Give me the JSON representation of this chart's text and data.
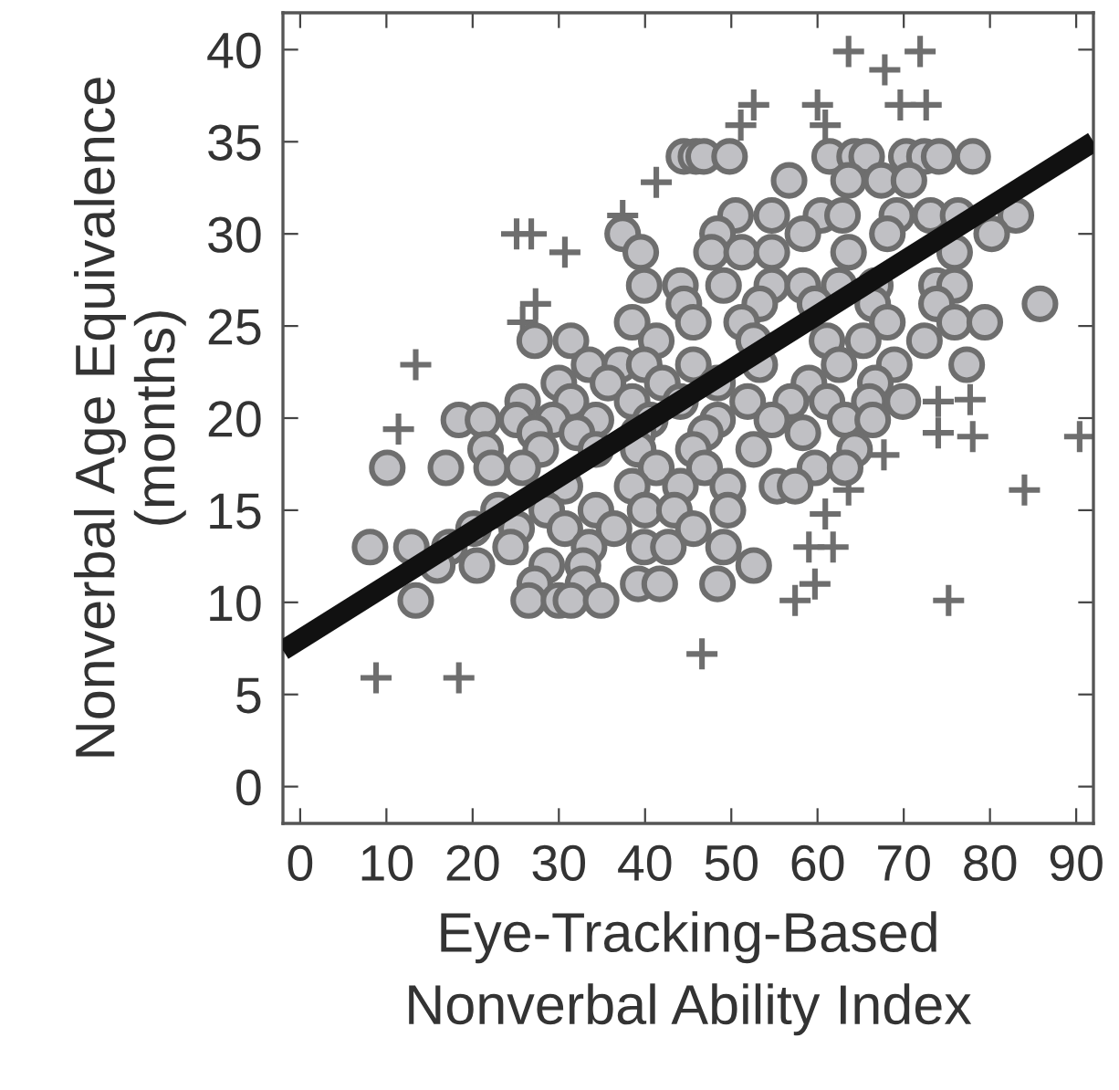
{
  "chart_data": {
    "type": "scatter",
    "xlabel": "Eye-Tracking-Based\nNonverbal Ability Index",
    "ylabel": "Nonverbal Age Equivalence\n(months)",
    "xlim": [
      -2,
      92
    ],
    "ylim": [
      -2,
      42
    ],
    "xticks": [
      0,
      10,
      20,
      30,
      40,
      50,
      60,
      70,
      80,
      90
    ],
    "yticks": [
      0,
      5,
      10,
      15,
      20,
      25,
      30,
      35,
      40
    ],
    "grid": false,
    "series": [
      {
        "marker": "circle",
        "color": "#c0c0c4",
        "x": [
          44.5,
          45.9,
          46.8,
          49.8,
          61.4,
          64.3,
          65.7,
          70.3,
          72.4,
          74.1,
          78.0,
          56.7,
          63.6,
          67.4,
          70.6,
          50.5,
          54.7,
          60.4,
          62.9,
          69.2,
          73.1,
          76.3,
          83.0,
          37.4,
          48.4,
          58.3,
          68.1,
          80.2,
          39.5,
          47.7,
          51.2,
          54.7,
          63.6,
          75.9,
          39.9,
          44.1,
          49.1,
          54.7,
          58.3,
          62.5,
          66.7,
          73.8,
          75.9,
          44.5,
          53.3,
          59.7,
          66.4,
          73.8,
          85.8,
          38.5,
          45.6,
          51.2,
          68.1,
          75.9,
          79.4,
          27.2,
          31.4,
          41.3,
          52.6,
          61.1,
          65.3,
          72.4,
          33.5,
          37.1,
          39.9,
          45.6,
          53.3,
          62.5,
          68.9,
          77.3,
          30.0,
          35.7,
          42.0,
          48.4,
          59.0,
          66.7,
          25.8,
          31.4,
          38.5,
          44.1,
          51.9,
          56.9,
          61.1,
          66.0,
          69.9,
          18.4,
          21.2,
          25.1,
          29.3,
          34.3,
          40.6,
          48.4,
          54.7,
          63.2,
          66.4,
          27.2,
          32.1,
          39.2,
          47.0,
          58.3,
          21.5,
          27.9,
          34.3,
          39.2,
          45.6,
          52.6,
          64.3,
          10.1,
          16.9,
          22.2,
          25.8,
          41.3,
          46.9,
          59.7,
          63.2,
          30.7,
          38.5,
          44.1,
          49.6,
          55.3,
          57.4,
          23.0,
          28.6,
          34.3,
          40.0,
          43.4,
          49.6,
          20.1,
          25.1,
          30.7,
          36.4,
          45.6,
          8.1,
          12.9,
          17.3,
          24.4,
          33.5,
          39.9,
          42.7,
          49.1,
          15.9,
          20.5,
          28.6,
          32.8,
          52.6,
          27.2,
          32.8,
          39.2,
          41.7,
          48.4,
          13.4,
          26.5,
          30.0,
          31.4,
          34.9
        ],
        "values": [
          34.2,
          34.2,
          34.2,
          34.2,
          34.2,
          34.2,
          34.2,
          34.2,
          34.2,
          34.2,
          34.2,
          32.9,
          32.9,
          32.9,
          32.9,
          31,
          31,
          31,
          31,
          31,
          31,
          31,
          31,
          30,
          30,
          30,
          30,
          30,
          29,
          29,
          29,
          29,
          29,
          29,
          27.2,
          27.2,
          27.2,
          27.2,
          27.2,
          27.2,
          27.2,
          27.2,
          27.2,
          26.2,
          26.2,
          26.2,
          26.2,
          26.2,
          26.2,
          25.2,
          25.2,
          25.2,
          25.2,
          25.2,
          25.2,
          24.2,
          24.2,
          24.2,
          24.2,
          24.2,
          24.2,
          24.2,
          22.9,
          22.9,
          22.9,
          22.9,
          22.9,
          22.9,
          22.9,
          22.9,
          21.9,
          21.9,
          21.9,
          21.9,
          21.9,
          21.9,
          20.9,
          20.9,
          20.9,
          20.9,
          20.9,
          20.9,
          20.9,
          20.9,
          20.9,
          19.9,
          19.9,
          19.9,
          19.9,
          19.9,
          19.9,
          19.9,
          19.9,
          19.9,
          19.9,
          19.2,
          19.2,
          19.2,
          19.2,
          19.2,
          18.3,
          18.3,
          18.3,
          18.3,
          18.3,
          18.3,
          18.3,
          17.3,
          17.3,
          17.3,
          17.3,
          17.3,
          17.3,
          17.3,
          17.3,
          16.3,
          16.3,
          16.3,
          16.3,
          16.3,
          16.3,
          15,
          15,
          15,
          15,
          15,
          15,
          14,
          14,
          14,
          14,
          14,
          13,
          13,
          13,
          13,
          13,
          13,
          13,
          13,
          12,
          12,
          12,
          12,
          12,
          11,
          11,
          11,
          11,
          11,
          10.1,
          10.1,
          10.1,
          10.1,
          10.1
        ]
      },
      {
        "marker": "cross",
        "color": "#6e6e6e",
        "x": [
          63.6,
          67.8,
          71.9,
          69.6,
          72.6,
          52.6,
          51.1,
          60.0,
          60.9,
          41.3,
          37.4,
          25.1,
          26.8,
          30.7,
          27.3,
          25.8,
          13.4,
          11.4,
          74.0,
          77.7,
          74.0,
          78.0,
          90.4,
          67.7,
          63.6,
          84.0,
          60.9,
          59.0,
          61.8,
          59.7,
          57.4,
          75.2,
          46.6,
          8.8,
          18.4
        ],
        "values": [
          39.9,
          38.9,
          39.9,
          37.0,
          37.0,
          37.0,
          35.9,
          37.0,
          35.9,
          32.8,
          31.0,
          30.0,
          30.0,
          29.0,
          26.2,
          25.2,
          22.9,
          19.4,
          20.9,
          21.0,
          19.2,
          19.0,
          19.0,
          18.0,
          16.1,
          16.1,
          14.8,
          13.0,
          13.0,
          11.0,
          10.1,
          10.1,
          7.2,
          5.9,
          5.9
        ]
      },
      {
        "type": "line",
        "color": "#111111",
        "line_style": "solid",
        "marker": "none",
        "x": [
          -2,
          92
        ],
        "values": [
          7.4,
          35.0
        ]
      }
    ]
  }
}
